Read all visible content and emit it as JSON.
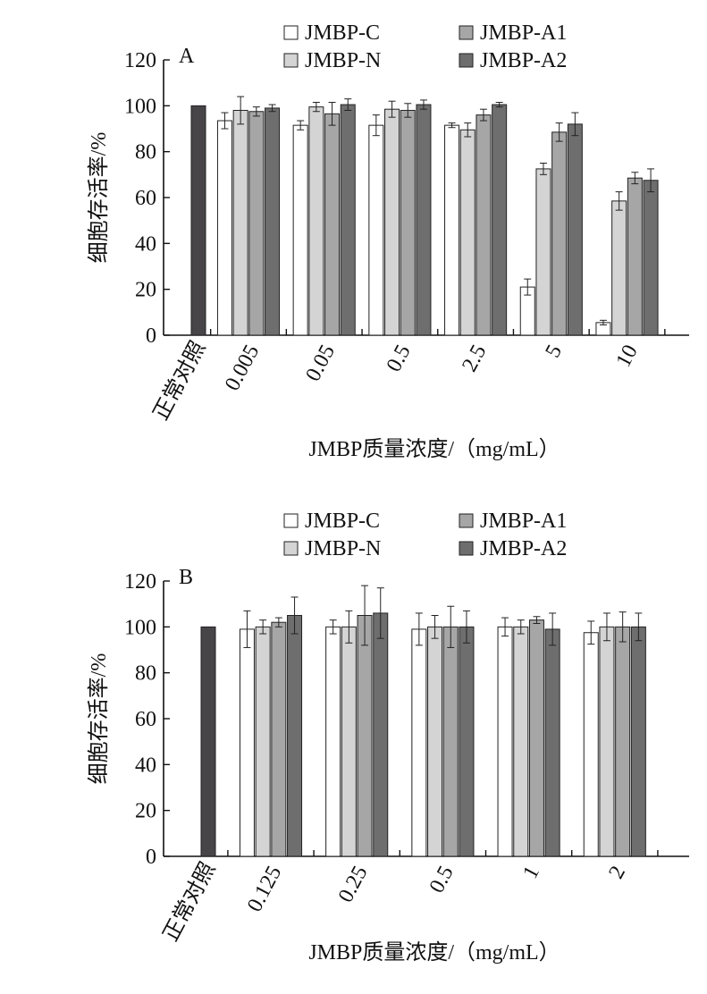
{
  "chart_data": [
    {
      "type": "bar",
      "panel_label": "A",
      "ylabel": "细胞存活率/%",
      "xlabel": "JMBP质量浓度/（mg/mL）",
      "ylim": [
        0,
        120
      ],
      "yticks": [
        0,
        20,
        40,
        60,
        80,
        100,
        120
      ],
      "legend_position": "top",
      "control": {
        "label": "正常对照",
        "value": 100,
        "color": "#474547"
      },
      "categories": [
        "0.005",
        "0.05",
        "0.5",
        "2.5",
        "5",
        "10"
      ],
      "series": [
        {
          "name": "JMBP-C",
          "color": "#ffffff",
          "values": [
            93.5,
            91.5,
            91.5,
            91.5,
            21,
            5.5
          ],
          "errors": [
            3.5,
            2,
            4.5,
            1,
            3.5,
            1
          ]
        },
        {
          "name": "JMBP-N",
          "color": "#d4d4d4",
          "values": [
            98,
            99.5,
            98.5,
            89.5,
            72.5,
            58.5
          ],
          "errors": [
            6,
            2,
            3.5,
            3,
            2.5,
            4
          ]
        },
        {
          "name": "JMBP-A1",
          "color": "#a6a6a6",
          "values": [
            97.5,
            96.5,
            98,
            96,
            88.5,
            68.5
          ],
          "errors": [
            2,
            5,
            3,
            2.5,
            4,
            2.5
          ]
        },
        {
          "name": "JMBP-A2",
          "color": "#6e6e6e",
          "values": [
            99,
            100.5,
            100.5,
            100.5,
            92,
            67.5
          ],
          "errors": [
            1.5,
            2.5,
            2,
            1,
            5,
            5
          ]
        }
      ]
    },
    {
      "type": "bar",
      "panel_label": "B",
      "ylabel": "细胞存活率/%",
      "xlabel": "JMBP质量浓度/（mg/mL）",
      "ylim": [
        0,
        120
      ],
      "yticks": [
        0,
        20,
        40,
        60,
        80,
        100,
        120
      ],
      "legend_position": "top",
      "control": {
        "label": "正常对照",
        "value": 100,
        "color": "#474547"
      },
      "categories": [
        "0.125",
        "0.25",
        "0.5",
        "1",
        "2"
      ],
      "series": [
        {
          "name": "JMBP-C",
          "color": "#ffffff",
          "values": [
            99,
            100,
            99,
            100,
            97.5
          ],
          "errors": [
            8,
            3,
            7,
            4,
            5
          ]
        },
        {
          "name": "JMBP-N",
          "color": "#d4d4d4",
          "values": [
            100,
            100,
            100,
            100,
            100
          ],
          "errors": [
            3,
            7,
            5,
            3,
            6
          ]
        },
        {
          "name": "JMBP-A1",
          "color": "#a6a6a6",
          "values": [
            102,
            105,
            100,
            103,
            100
          ],
          "errors": [
            2,
            13,
            9,
            1.5,
            6.5
          ]
        },
        {
          "name": "JMBP-A2",
          "color": "#6e6e6e",
          "values": [
            105,
            106,
            100,
            99,
            100
          ],
          "errors": [
            8,
            11,
            7,
            7,
            6
          ]
        }
      ]
    }
  ]
}
